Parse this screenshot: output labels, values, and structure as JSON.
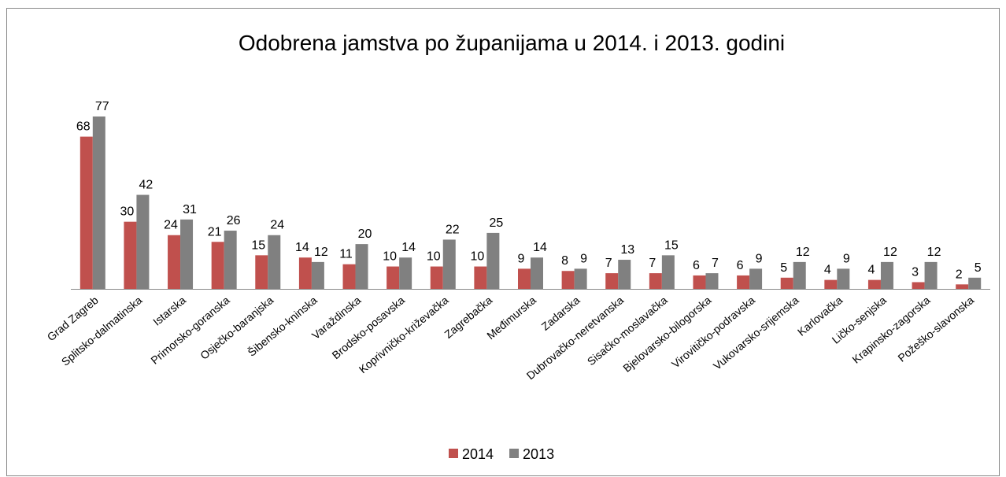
{
  "chart_data": {
    "type": "bar",
    "title": "Odobrena jamstva po županijama u 2014. i 2013. godini",
    "categories": [
      "Grad Zagreb",
      "Splitsko-dalmatinska",
      "Istarska",
      "Primorsko-goranska",
      "Osječko-baranjska",
      "Šibensko-kninska",
      "Varaždinska",
      "Brodsko-posavska",
      "Koprivničko-križevačka",
      "Zagrebačka",
      "Međimurska",
      "Zadarska",
      "Dubrovačko-neretvanska",
      "Sisačko-moslavačka",
      "Bjelovarsko-bilogorska",
      "Virovitičko-podravska",
      "Vukovarsko-srijemska",
      "Karlovačka",
      "Ličko-senjska",
      "Krapinsko-zagorska",
      "Požeško-slavonska"
    ],
    "series": [
      {
        "name": "2014",
        "color": "#c0504d",
        "values": [
          68,
          30,
          24,
          21,
          15,
          14,
          11,
          10,
          10,
          10,
          9,
          8,
          7,
          7,
          6,
          6,
          5,
          4,
          4,
          3,
          2
        ]
      },
      {
        "name": "2013",
        "color": "#808080",
        "values": [
          77,
          42,
          31,
          26,
          24,
          12,
          20,
          14,
          22,
          25,
          14,
          9,
          13,
          15,
          7,
          9,
          12,
          9,
          12,
          12,
          5
        ]
      }
    ],
    "legend": "bottom"
  }
}
